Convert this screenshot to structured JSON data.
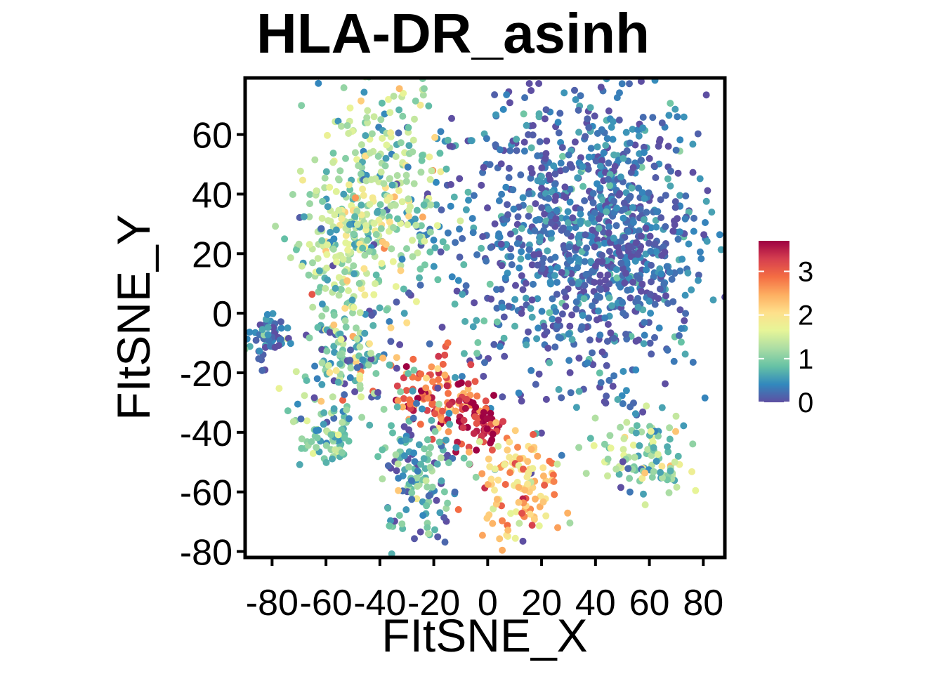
{
  "chart_data": {
    "type": "scatter",
    "title": "HLA-DR_asinh",
    "xlabel": "FItSNE_X",
    "ylabel": "FItSNE_Y",
    "xlim": [
      -90,
      88
    ],
    "ylim": [
      -82,
      79
    ],
    "x_ticks": [
      -80,
      -60,
      -40,
      -20,
      0,
      20,
      40,
      60,
      80
    ],
    "y_ticks": [
      -80,
      -60,
      -40,
      -20,
      0,
      20,
      40,
      60
    ],
    "x_tick_labels": [
      "-80",
      "-60",
      "-40",
      "-20",
      "0",
      "20",
      "40",
      "60",
      "80"
    ],
    "y_tick_labels": [
      "-80",
      "-60",
      "-40",
      "-20",
      "0",
      "20",
      "40",
      "60"
    ],
    "grid": false,
    "colorscale": "Spectral (reversed)",
    "color_range": [
      0,
      3.7
    ],
    "colors": [
      "#5E4FA2",
      "#3288BD",
      "#66C2A5",
      "#ABDDA4",
      "#E6F598",
      "#FEE08B",
      "#FDAE61",
      "#F46D43",
      "#D53E4F",
      "#9E0142"
    ],
    "legend": {
      "position": "right",
      "ticks": [
        0,
        1,
        2,
        3
      ],
      "tick_labels": [
        "0",
        "1",
        "2",
        "3"
      ]
    },
    "clusters": [
      {
        "x": 28,
        "y": 28,
        "sx": 26,
        "sy": 26,
        "value": 0.25,
        "spread": 0.3
      },
      {
        "x": 50,
        "y": 20,
        "sx": 14,
        "sy": 20,
        "value": 0.2,
        "spread": 0.25
      },
      {
        "x": -40,
        "y": 42,
        "sx": 12,
        "sy": 18,
        "value": 1.3,
        "spread": 0.5
      },
      {
        "x": -55,
        "y": 20,
        "sx": 8,
        "sy": 12,
        "value": 1.1,
        "spread": 0.5
      },
      {
        "x": -18,
        "y": -28,
        "sx": 8,
        "sy": 7,
        "value": 3.0,
        "spread": 0.5
      },
      {
        "x": -5,
        "y": -36,
        "sx": 5,
        "sy": 5,
        "value": 3.5,
        "spread": 0.3
      },
      {
        "x": 12,
        "y": -58,
        "sx": 8,
        "sy": 9,
        "value": 2.2,
        "spread": 0.5
      },
      {
        "x": -25,
        "y": -55,
        "sx": 8,
        "sy": 11,
        "value": 0.6,
        "spread": 0.5
      },
      {
        "x": -50,
        "y": -15,
        "sx": 10,
        "sy": 9,
        "value": 0.9,
        "spread": 0.7
      },
      {
        "x": 58,
        "y": -48,
        "sx": 8,
        "sy": 8,
        "value": 1.1,
        "spread": 0.5
      },
      {
        "x": -82,
        "y": -8,
        "sx": 4,
        "sy": 4,
        "value": 0.3,
        "spread": 0.3
      },
      {
        "x": -60,
        "y": -42,
        "sx": 5,
        "sy": 5,
        "value": 0.9,
        "spread": 0.4
      }
    ]
  }
}
